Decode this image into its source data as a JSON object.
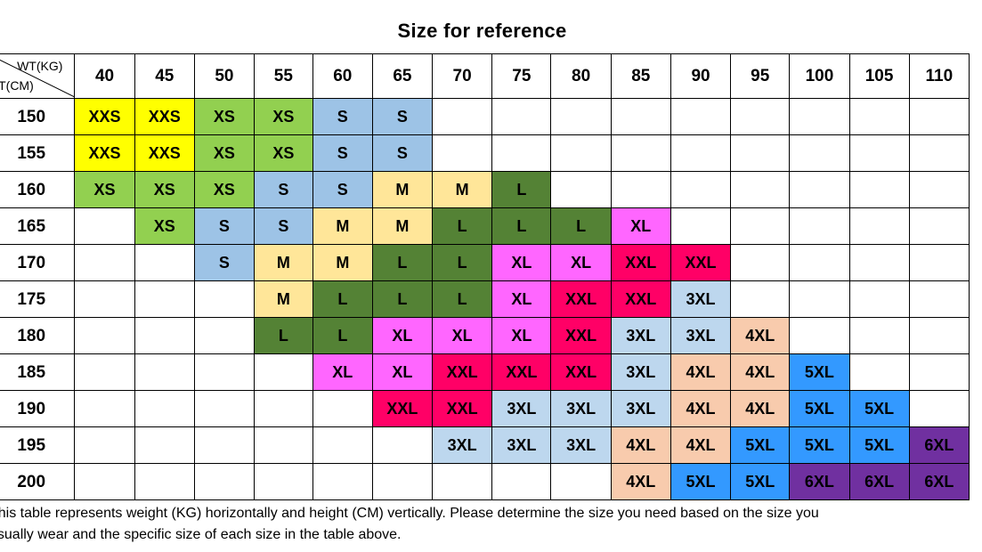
{
  "title": "Size for reference",
  "corner": {
    "weight_label": "WT(KG)",
    "height_label": "HT(CM)"
  },
  "weights": [
    "40",
    "45",
    "50",
    "55",
    "60",
    "65",
    "70",
    "75",
    "80",
    "85",
    "90",
    "95",
    "100",
    "105",
    "110"
  ],
  "rows": [
    {
      "height": "150",
      "cells": [
        "XXS",
        "XXS",
        "XS",
        "XS",
        "S",
        "S",
        "",
        "",
        "",
        "",
        "",
        "",
        "",
        "",
        ""
      ]
    },
    {
      "height": "155",
      "cells": [
        "XXS",
        "XXS",
        "XS",
        "XS",
        "S",
        "S",
        "",
        "",
        "",
        "",
        "",
        "",
        "",
        "",
        ""
      ]
    },
    {
      "height": "160",
      "cells": [
        "XS",
        "XS",
        "XS",
        "S",
        "S",
        "M",
        "M",
        "L",
        "",
        "",
        "",
        "",
        "",
        "",
        ""
      ]
    },
    {
      "height": "165",
      "cells": [
        "",
        "XS",
        "S",
        "S",
        "M",
        "M",
        "L",
        "L",
        "L",
        "XL",
        "",
        "",
        "",
        "",
        ""
      ]
    },
    {
      "height": "170",
      "cells": [
        "",
        "",
        "S",
        "M",
        "M",
        "L",
        "L",
        "XL",
        "XL",
        "XXL",
        "XXL",
        "",
        "",
        "",
        ""
      ]
    },
    {
      "height": "175",
      "cells": [
        "",
        "",
        "",
        "M",
        "L",
        "L",
        "L",
        "XL",
        "XXL",
        "XXL",
        "3XL",
        "",
        "",
        "",
        ""
      ]
    },
    {
      "height": "180",
      "cells": [
        "",
        "",
        "",
        "L",
        "L",
        "XL",
        "XL",
        "XL",
        "XXL",
        "3XL",
        "3XL",
        "4XL",
        "",
        "",
        ""
      ]
    },
    {
      "height": "185",
      "cells": [
        "",
        "",
        "",
        "",
        "XL",
        "XL",
        "XXL",
        "XXL",
        "XXL",
        "3XL",
        "4XL",
        "4XL",
        "5XL",
        "",
        ""
      ]
    },
    {
      "height": "190",
      "cells": [
        "",
        "",
        "",
        "",
        "",
        "XXL",
        "XXL",
        "3XL",
        "3XL",
        "3XL",
        "4XL",
        "4XL",
        "5XL",
        "5XL",
        ""
      ]
    },
    {
      "height": "195",
      "cells": [
        "",
        "",
        "",
        "",
        "",
        "",
        "3XL",
        "3XL",
        "3XL",
        "4XL",
        "4XL",
        "5XL",
        "5XL",
        "5XL",
        "6XL"
      ]
    },
    {
      "height": "200",
      "cells": [
        "",
        "",
        "",
        "",
        "",
        "",
        "",
        "",
        "",
        "4XL",
        "5XL",
        "5XL",
        "6XL",
        "6XL",
        "6XL"
      ]
    }
  ],
  "size_colors": {
    "XXS": "#ffff00",
    "XS": "#92d050",
    "S": "#9dc3e6",
    "M": "#ffe699",
    "L": "#548235",
    "XL": "#ff66ff",
    "XXL": "#ff0066",
    "3XL": "#bdd7ee",
    "4XL": "#f8cbad",
    "5XL": "#3399ff",
    "6XL": "#7030a0"
  },
  "note": {
    "line1": "This table represents weight (KG) horizontally and height (CM) vertically. Please determine the size you need based on the size you",
    "line2": "usually wear and the specific size of each size in the table above."
  }
}
